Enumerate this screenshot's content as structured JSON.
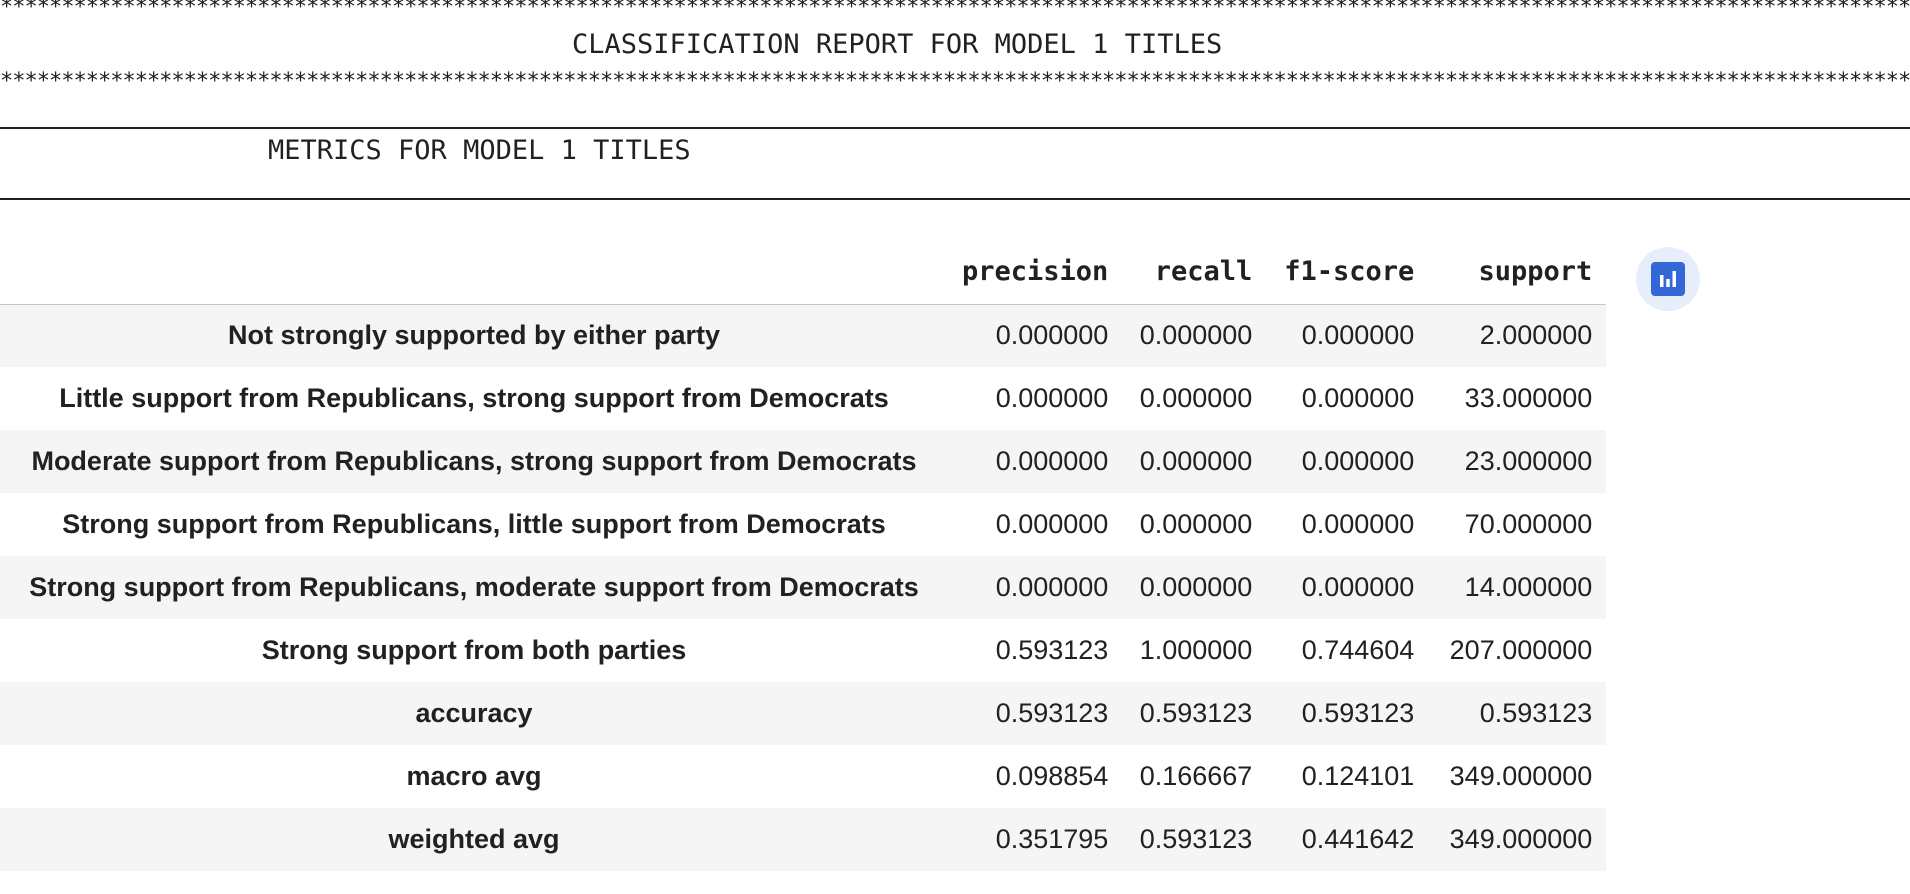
{
  "report": {
    "stars": "**************************************************************************************************************************************************************************************************************",
    "title": "CLASSIFICATION REPORT FOR MODEL 1 TITLES",
    "metrics_title": "METRICS FOR MODEL 1 TITLES"
  },
  "table": {
    "columns": [
      "precision",
      "recall",
      "f1-score",
      "support"
    ],
    "rows": [
      {
        "label": "Not strongly supported by either party",
        "values": [
          "0.000000",
          "0.000000",
          "0.000000",
          "2.000000"
        ]
      },
      {
        "label": "Little support from Republicans, strong support from Democrats",
        "values": [
          "0.000000",
          "0.000000",
          "0.000000",
          "33.000000"
        ]
      },
      {
        "label": "Moderate support from Republicans, strong support from Democrats",
        "values": [
          "0.000000",
          "0.000000",
          "0.000000",
          "23.000000"
        ]
      },
      {
        "label": "Strong support from Republicans, little support from Democrats",
        "values": [
          "0.000000",
          "0.000000",
          "0.000000",
          "70.000000"
        ]
      },
      {
        "label": "Strong support from Republicans, moderate support from Democrats",
        "values": [
          "0.000000",
          "0.000000",
          "0.000000",
          "14.000000"
        ]
      },
      {
        "label": "Strong support from both parties",
        "values": [
          "0.593123",
          "1.000000",
          "0.744604",
          "207.000000"
        ]
      },
      {
        "label": "accuracy",
        "values": [
          "0.593123",
          "0.593123",
          "0.593123",
          "0.593123"
        ]
      },
      {
        "label": "macro avg",
        "values": [
          "0.098854",
          "0.166667",
          "0.124101",
          "349.000000"
        ]
      },
      {
        "label": "weighted avg",
        "values": [
          "0.351795",
          "0.593123",
          "0.441642",
          "349.000000"
        ]
      }
    ]
  },
  "chart_button": {
    "icon": "bar-chart-icon",
    "color": "#3367d6",
    "background": "#e6eefb"
  }
}
